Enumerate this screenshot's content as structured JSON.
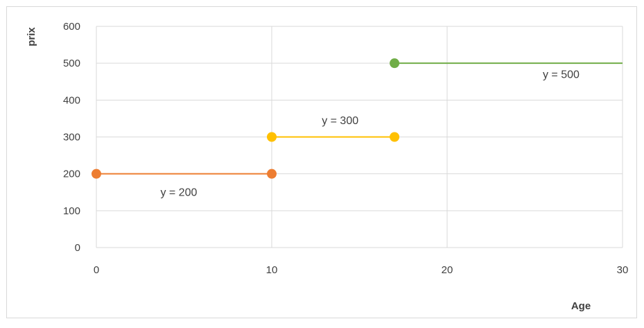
{
  "chart_data": {
    "type": "line",
    "xlabel": "Age",
    "ylabel": "prix",
    "xlim": [
      0,
      30
    ],
    "ylim": [
      0,
      600
    ],
    "x_ticks": [
      "0",
      "10",
      "20",
      "30"
    ],
    "y_ticks": [
      "0",
      "100",
      "200",
      "300",
      "400",
      "500",
      "600"
    ],
    "grid": true,
    "legend": "none",
    "series": [
      {
        "color": "#ED7D31",
        "x": [
          0,
          10
        ],
        "y": [
          200,
          200
        ]
      },
      {
        "color": "#FFC000",
        "x": [
          10,
          17
        ],
        "y": [
          300,
          300
        ]
      },
      {
        "color": "#70AD47",
        "x": [
          17,
          30
        ],
        "y": [
          500,
          500
        ],
        "end_marker": false
      }
    ],
    "annotations": [
      {
        "text": "y = 200",
        "x": 4.7,
        "y": 140
      },
      {
        "text": "y = 300",
        "x": 13.9,
        "y": 335
      },
      {
        "text": "y = 500",
        "x": 26.5,
        "y": 460
      }
    ]
  }
}
